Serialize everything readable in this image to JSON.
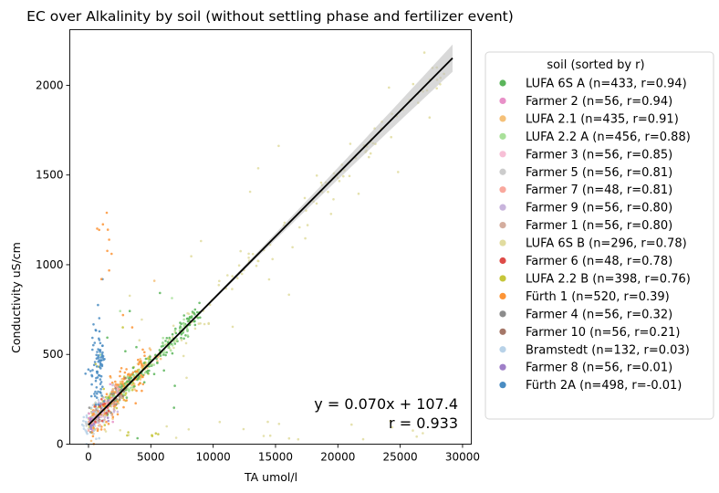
{
  "chart_data": {
    "type": "scatter",
    "title": "EC over Alkalinity by soil (without settling phase and fertilizer event)",
    "xlabel": "TA umol/l",
    "ylabel": "Conductivity uS/cm",
    "xlim": [
      -1500,
      30700
    ],
    "ylim": [
      0,
      2310
    ],
    "x_ticks": [
      0,
      5000,
      10000,
      15000,
      20000,
      25000,
      30000
    ],
    "y_ticks": [
      0,
      500,
      1000,
      1500,
      2000
    ],
    "grid": false,
    "legend": {
      "title": "soil  (sorted by r)",
      "placement": "right-outside",
      "entries": [
        {
          "label": "LUFA 6S A  (n=433, r=0.94)",
          "color": "#5bb55b"
        },
        {
          "label": "Farmer 2  (n=56, r=0.94)",
          "color": "#e890c8"
        },
        {
          "label": "LUFA 2.1  (n=435, r=0.91)",
          "color": "#f5c078"
        },
        {
          "label": "LUFA 2.2 A  (n=456, r=0.88)",
          "color": "#a9e09a"
        },
        {
          "label": "Farmer 3  (n=56, r=0.85)",
          "color": "#f7bfd6"
        },
        {
          "label": "Farmer 5  (n=56, r=0.81)",
          "color": "#cccccc"
        },
        {
          "label": "Farmer 7  (n=48, r=0.81)",
          "color": "#f9a89d"
        },
        {
          "label": "Farmer 9  (n=56, r=0.80)",
          "color": "#c8b4dc"
        },
        {
          "label": "Farmer 1  (n=56, r=0.80)",
          "color": "#d4ad9e"
        },
        {
          "label": "LUFA 6S B  (n=296, r=0.78)",
          "color": "#e1dc9f"
        },
        {
          "label": "Farmer 6  (n=48, r=0.78)",
          "color": "#de4b48"
        },
        {
          "label": "LUFA 2.2 B  (n=398, r=0.76)",
          "color": "#c6c63a"
        },
        {
          "label": "Fürth 1  (n=520, r=0.39)",
          "color": "#fd9436"
        },
        {
          "label": "Farmer 4  (n=56, r=0.32)",
          "color": "#8c8c8c"
        },
        {
          "label": "Farmer 10  (n=56, r=0.21)",
          "color": "#a57768"
        },
        {
          "label": "Bramstedt  (n=132, r=0.03)",
          "color": "#b8d2e8"
        },
        {
          "label": "Farmer 8  (n=56, r=0.01)",
          "color": "#9f7fc8"
        },
        {
          "label": "Fürth 2A  (n=498, r=-0.01)",
          "color": "#4a8cc2"
        }
      ]
    },
    "regression": {
      "slope": 0.07,
      "intercept": 107.4,
      "x_range": [
        0,
        29200
      ],
      "color": "#000000",
      "confidence_band": true
    },
    "annotations": {
      "equation": "y = 0.070x + 107.4",
      "r_value": "r = 0.933"
    }
  }
}
